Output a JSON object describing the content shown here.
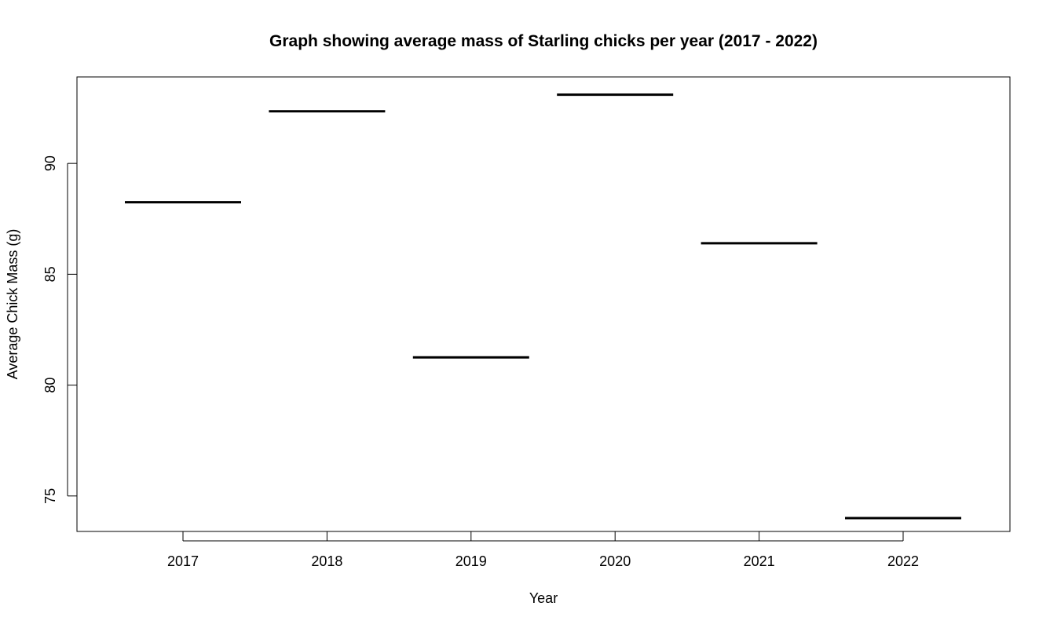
{
  "chart_data": {
    "type": "bar",
    "title": "Graph showing average mass of Starling chicks per year (2017 - 2022)",
    "xlabel": "Year",
    "ylabel": "Average Chick Mass (g)",
    "categories": [
      "2017",
      "2018",
      "2019",
      "2020",
      "2021",
      "2022"
    ],
    "values": [
      88.25,
      92.35,
      81.25,
      93.1,
      86.4,
      74.0
    ],
    "ylim": [
      73.4,
      93.9
    ],
    "yticks": [
      75,
      80,
      85,
      90
    ],
    "grid": false,
    "legend": "none",
    "mark_style": "horizontal segment per category",
    "line_color": "#000000"
  }
}
